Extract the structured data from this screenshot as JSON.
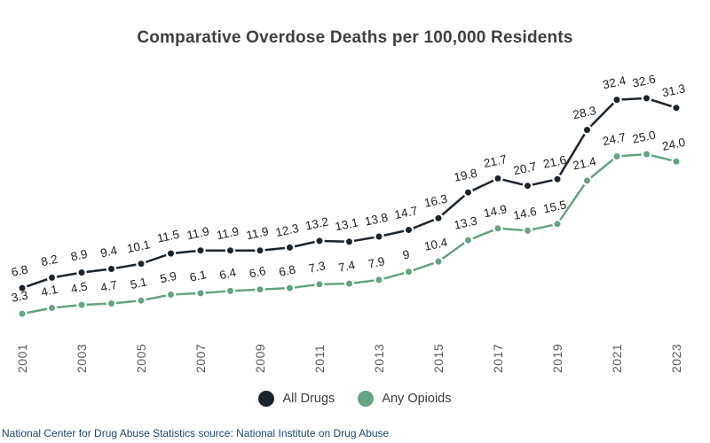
{
  "title": "Comparative Overdose Deaths per 100,000 Residents",
  "source_note": "National Center for Drug Abuse Statistics source: National Institute on Drug Abuse",
  "colors": {
    "all_drugs": "#1b242d",
    "any_opioids": "#66a381",
    "title_text": "#404040",
    "axis_text": "#5a5a5a",
    "source_text": "#20456e"
  },
  "chart_data": {
    "type": "line",
    "title": "Comparative Overdose Deaths per 100,000 Residents",
    "xlabel": "",
    "ylabel": "",
    "ylim": [
      0,
      35
    ],
    "grid": false,
    "legend_position": "bottom-center",
    "x_tick_labels_shown_every": 2,
    "categories": [
      2001,
      2002,
      2003,
      2004,
      2005,
      2006,
      2007,
      2008,
      2009,
      2010,
      2011,
      2012,
      2013,
      2014,
      2015,
      2016,
      2017,
      2018,
      2019,
      2020,
      2021,
      2022,
      2023
    ],
    "series": [
      {
        "name": "All Drugs",
        "color": "#1b242d",
        "values": [
          6.8,
          8.2,
          8.9,
          9.4,
          10.1,
          11.5,
          11.9,
          11.9,
          11.9,
          12.3,
          13.2,
          13.1,
          13.8,
          14.7,
          16.3,
          19.8,
          21.7,
          20.7,
          21.6,
          28.3,
          32.4,
          32.6,
          31.3
        ],
        "labels": [
          "6.8",
          "8.2",
          "8.9",
          "9.4",
          "10.1",
          "11.5",
          "11.9",
          "11.9",
          "11.9",
          "12.3",
          "13.2",
          "13.1",
          "13.8",
          "14.7",
          "16.3",
          "19.8",
          "21.7",
          "20.7",
          "21.6",
          "28.3",
          "32.4",
          "32.6",
          "31.3"
        ]
      },
      {
        "name": "Any Opioids",
        "color": "#66a381",
        "values": [
          3.3,
          4.1,
          4.5,
          4.7,
          5.1,
          5.9,
          6.1,
          6.4,
          6.6,
          6.8,
          7.3,
          7.4,
          7.9,
          9,
          10.4,
          13.3,
          14.9,
          14.6,
          15.5,
          21.4,
          24.7,
          25.0,
          24.0
        ],
        "labels": [
          "3.3",
          "4.1",
          "4.5",
          "4.7",
          "5.1",
          "5.9",
          "6.1",
          "6.4",
          "6.6",
          "6.8",
          "7.3",
          "7.4",
          "7.9",
          "9",
          "10.4",
          "13.3",
          "14.9",
          "14.6",
          "15.5",
          "21.4",
          "24.7",
          "25.0",
          "24.0"
        ]
      }
    ]
  },
  "legend": {
    "items": [
      {
        "label": "All Drugs"
      },
      {
        "label": "Any Opioids"
      }
    ]
  }
}
